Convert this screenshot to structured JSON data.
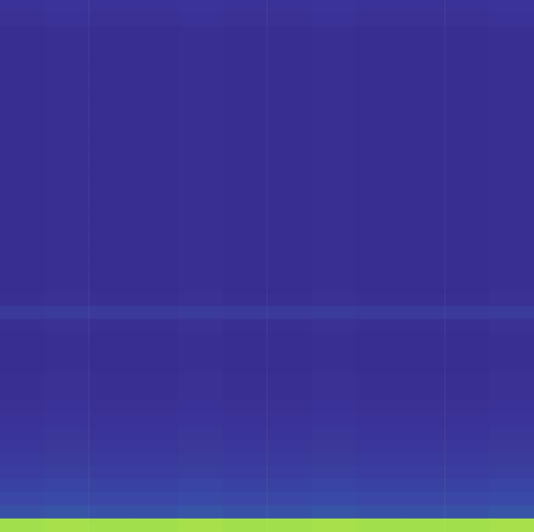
{
  "chart_data": {
    "type": "heatmap",
    "tick_labels": false,
    "color_range": [
      0,
      1
    ],
    "cells": [
      [
        0.15,
        0.16,
        0.15,
        0.15,
        0.16,
        0.15,
        0.15,
        0.16,
        0.15,
        0.15,
        0.15,
        0.16
      ],
      [
        0.14,
        0.15,
        0.14,
        0.14,
        0.15,
        0.14,
        0.14,
        0.15,
        0.14,
        0.14,
        0.14,
        0.15
      ],
      [
        0.12,
        0.13,
        0.12,
        0.12,
        0.13,
        0.12,
        0.12,
        0.13,
        0.12,
        0.12,
        0.12,
        0.13
      ],
      [
        0.12,
        0.13,
        0.12,
        0.12,
        0.13,
        0.12,
        0.12,
        0.13,
        0.12,
        0.12,
        0.12,
        0.13
      ],
      [
        0.12,
        0.13,
        0.12,
        0.12,
        0.13,
        0.12,
        0.12,
        0.13,
        0.12,
        0.12,
        0.12,
        0.13
      ],
      [
        0.12,
        0.13,
        0.12,
        0.12,
        0.13,
        0.12,
        0.12,
        0.13,
        0.12,
        0.12,
        0.12,
        0.13
      ],
      [
        0.12,
        0.13,
        0.12,
        0.12,
        0.13,
        0.12,
        0.12,
        0.13,
        0.12,
        0.12,
        0.12,
        0.13
      ],
      [
        0.12,
        0.13,
        0.12,
        0.12,
        0.13,
        0.12,
        0.12,
        0.13,
        0.12,
        0.12,
        0.12,
        0.13
      ],
      [
        0.12,
        0.13,
        0.12,
        0.12,
        0.13,
        0.12,
        0.12,
        0.13,
        0.12,
        0.12,
        0.12,
        0.13
      ],
      [
        0.12,
        0.13,
        0.12,
        0.12,
        0.13,
        0.12,
        0.12,
        0.13,
        0.12,
        0.12,
        0.12,
        0.13
      ],
      [
        0.12,
        0.13,
        0.12,
        0.12,
        0.13,
        0.12,
        0.12,
        0.13,
        0.12,
        0.12,
        0.12,
        0.13
      ],
      [
        0.12,
        0.13,
        0.12,
        0.12,
        0.13,
        0.12,
        0.12,
        0.13,
        0.12,
        0.12,
        0.12,
        0.13
      ],
      [
        0.12,
        0.13,
        0.12,
        0.12,
        0.13,
        0.12,
        0.12,
        0.13,
        0.12,
        0.12,
        0.12,
        0.13
      ],
      [
        0.12,
        0.13,
        0.12,
        0.12,
        0.13,
        0.12,
        0.12,
        0.13,
        0.12,
        0.12,
        0.12,
        0.13
      ],
      [
        0.12,
        0.13,
        0.12,
        0.12,
        0.13,
        0.12,
        0.12,
        0.13,
        0.12,
        0.12,
        0.12,
        0.13
      ],
      [
        0.12,
        0.13,
        0.12,
        0.12,
        0.13,
        0.12,
        0.12,
        0.13,
        0.12,
        0.12,
        0.12,
        0.13
      ],
      [
        0.12,
        0.13,
        0.12,
        0.12,
        0.13,
        0.12,
        0.12,
        0.13,
        0.12,
        0.12,
        0.12,
        0.13
      ],
      [
        0.12,
        0.13,
        0.12,
        0.12,
        0.13,
        0.12,
        0.12,
        0.13,
        0.12,
        0.12,
        0.12,
        0.13
      ],
      [
        0.12,
        0.13,
        0.12,
        0.12,
        0.13,
        0.12,
        0.12,
        0.13,
        0.12,
        0.12,
        0.12,
        0.13
      ],
      [
        0.12,
        0.13,
        0.12,
        0.12,
        0.13,
        0.12,
        0.12,
        0.13,
        0.12,
        0.12,
        0.12,
        0.13
      ],
      [
        0.12,
        0.13,
        0.12,
        0.12,
        0.13,
        0.12,
        0.12,
        0.13,
        0.12,
        0.12,
        0.12,
        0.13
      ],
      [
        0.12,
        0.13,
        0.12,
        0.12,
        0.13,
        0.12,
        0.12,
        0.13,
        0.12,
        0.12,
        0.12,
        0.13
      ],
      [
        0.13,
        0.14,
        0.13,
        0.13,
        0.14,
        0.13,
        0.13,
        0.14,
        0.13,
        0.13,
        0.13,
        0.14
      ],
      [
        0.19,
        0.2,
        0.19,
        0.19,
        0.2,
        0.19,
        0.19,
        0.2,
        0.19,
        0.19,
        0.19,
        0.2
      ],
      [
        0.13,
        0.14,
        0.13,
        0.13,
        0.14,
        0.13,
        0.13,
        0.14,
        0.13,
        0.13,
        0.13,
        0.14
      ],
      [
        0.12,
        0.13,
        0.12,
        0.12,
        0.13,
        0.12,
        0.12,
        0.13,
        0.12,
        0.12,
        0.12,
        0.13
      ],
      [
        0.12,
        0.13,
        0.12,
        0.12,
        0.13,
        0.12,
        0.12,
        0.13,
        0.12,
        0.12,
        0.12,
        0.13
      ],
      [
        0.12,
        0.13,
        0.12,
        0.12,
        0.13,
        0.12,
        0.12,
        0.13,
        0.12,
        0.12,
        0.12,
        0.13
      ],
      [
        0.13,
        0.14,
        0.13,
        0.13,
        0.14,
        0.13,
        0.13,
        0.14,
        0.13,
        0.13,
        0.13,
        0.14
      ],
      [
        0.13,
        0.14,
        0.13,
        0.13,
        0.14,
        0.13,
        0.13,
        0.14,
        0.13,
        0.13,
        0.13,
        0.14
      ],
      [
        0.14,
        0.15,
        0.14,
        0.14,
        0.15,
        0.14,
        0.14,
        0.15,
        0.14,
        0.14,
        0.14,
        0.15
      ],
      [
        0.15,
        0.16,
        0.15,
        0.15,
        0.16,
        0.15,
        0.15,
        0.16,
        0.15,
        0.15,
        0.15,
        0.16
      ],
      [
        0.16,
        0.17,
        0.16,
        0.16,
        0.17,
        0.16,
        0.16,
        0.17,
        0.16,
        0.16,
        0.16,
        0.17
      ],
      [
        0.17,
        0.18,
        0.17,
        0.17,
        0.18,
        0.17,
        0.17,
        0.18,
        0.17,
        0.17,
        0.17,
        0.18
      ],
      [
        0.19,
        0.2,
        0.19,
        0.19,
        0.2,
        0.19,
        0.19,
        0.2,
        0.19,
        0.19,
        0.19,
        0.2
      ],
      [
        0.21,
        0.22,
        0.21,
        0.21,
        0.22,
        0.21,
        0.21,
        0.22,
        0.21,
        0.21,
        0.21,
        0.22
      ],
      [
        0.24,
        0.25,
        0.24,
        0.24,
        0.25,
        0.24,
        0.24,
        0.25,
        0.24,
        0.24,
        0.24,
        0.25
      ],
      [
        0.27,
        0.28,
        0.27,
        0.27,
        0.28,
        0.27,
        0.27,
        0.28,
        0.27,
        0.27,
        0.27,
        0.28
      ],
      [
        0.31,
        0.32,
        0.31,
        0.31,
        0.32,
        0.31,
        0.31,
        0.32,
        0.31,
        0.31,
        0.31,
        0.32
      ],
      [
        0.85,
        0.86,
        0.85,
        0.85,
        0.86,
        0.85,
        0.85,
        0.86,
        0.85,
        0.85,
        0.85,
        0.86
      ]
    ]
  }
}
